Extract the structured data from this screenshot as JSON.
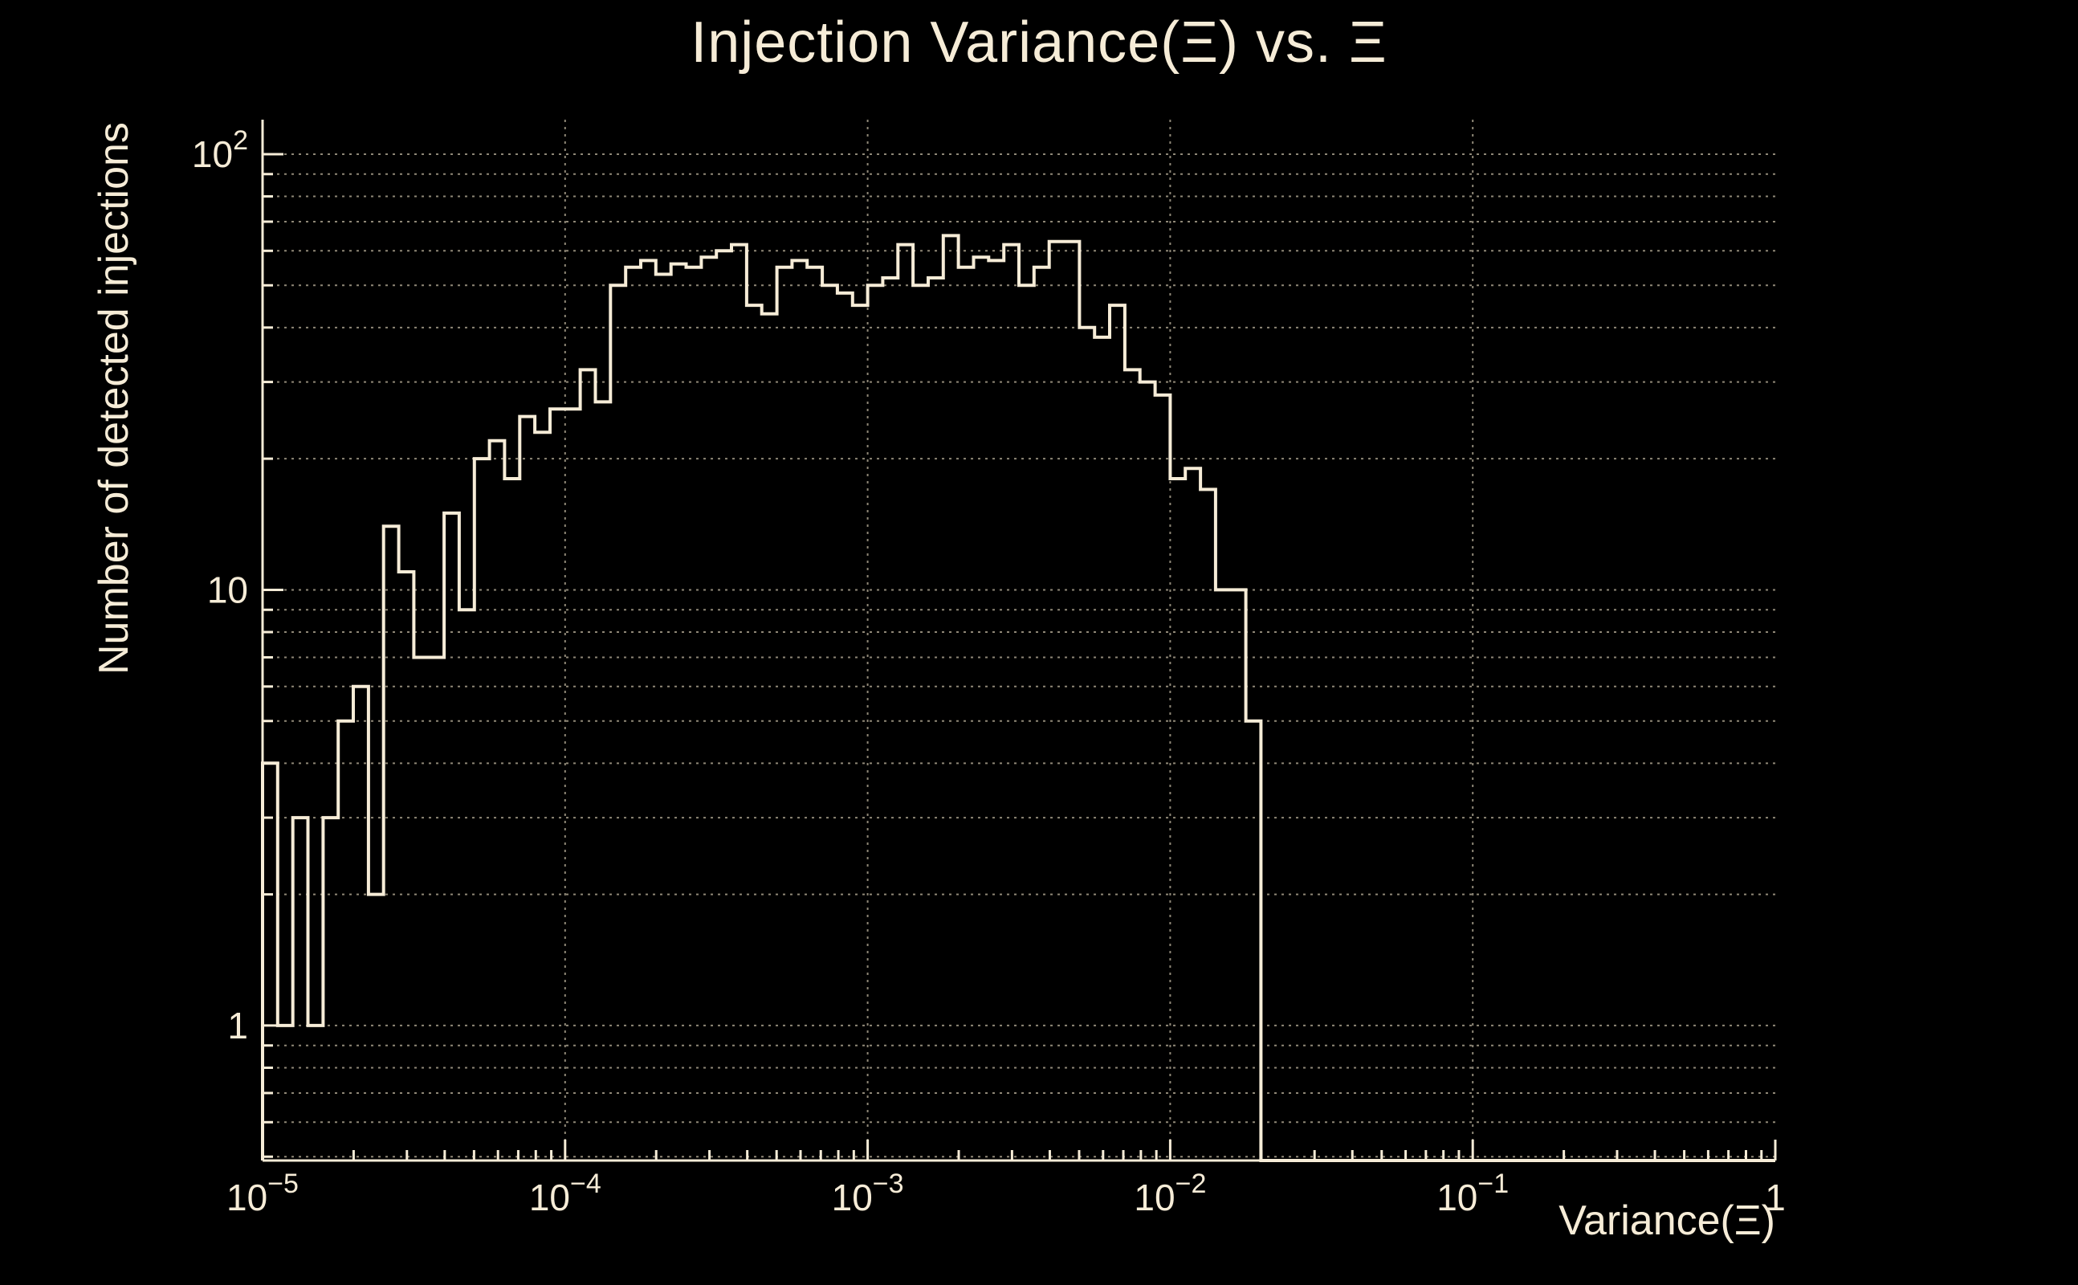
{
  "chart_data": {
    "type": "histogram",
    "title": "Injection Variance(Ξ) vs. Ξ",
    "xlabel": "Variance(Ξ)",
    "ylabel": "Number of detected injections",
    "x_scale": "log",
    "y_scale": "log",
    "xlim": [
      1e-05,
      1
    ],
    "ylim": [
      0.49,
      120
    ],
    "grid": true,
    "legend": "none",
    "x_ticks": [
      {
        "base": "10",
        "exp": "−5",
        "log10": -5
      },
      {
        "base": "10",
        "exp": "−4",
        "log10": -4
      },
      {
        "base": "10",
        "exp": "−3",
        "log10": -3
      },
      {
        "base": "10",
        "exp": "−2",
        "log10": -2
      },
      {
        "base": "10",
        "exp": "−1",
        "log10": -1
      },
      {
        "base": "1",
        "exp": "",
        "log10": 0
      }
    ],
    "y_ticks": [
      {
        "base": "1",
        "exp": "",
        "value": 1
      },
      {
        "base": "10",
        "exp": "",
        "value": 10
      },
      {
        "base": "10",
        "exp": "2",
        "value": 100
      }
    ],
    "bins": {
      "log10_start": -5,
      "log10_step": 0.05,
      "counts": [
        4,
        1,
        3,
        1,
        3,
        5,
        6,
        2,
        14,
        11,
        7,
        7,
        15,
        9,
        20,
        22,
        18,
        25,
        23,
        26,
        26,
        32,
        27,
        50,
        55,
        57,
        53,
        56,
        55,
        58,
        60,
        62,
        45,
        43,
        55,
        57,
        55,
        50,
        48,
        45,
        50,
        52,
        62,
        50,
        52,
        65,
        55,
        58,
        57,
        62,
        50,
        55,
        63,
        63,
        40,
        38,
        45,
        32,
        30,
        28,
        18,
        19,
        17,
        10,
        10,
        5
      ]
    }
  },
  "colors": {
    "background": "#000000",
    "foreground": "#f6ecd7",
    "grid": "#8f8877",
    "histogram": "#f6ecd7"
  }
}
